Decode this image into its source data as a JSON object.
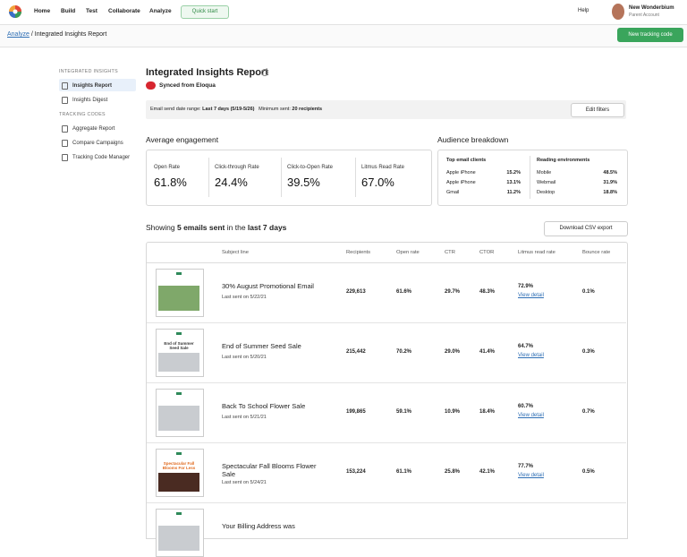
{
  "nav": {
    "items": [
      "Home",
      "Build",
      "Test",
      "Collaborate",
      "Analyze"
    ],
    "quick_start": "Quick start",
    "help": "Help",
    "account_name": "New Wonderbium",
    "account_type": "Parent Account"
  },
  "breadcrumb": {
    "parent": "Analyze",
    "separator": "/",
    "current": "Integrated Insights Report",
    "button": "New tracking code"
  },
  "sidebar": {
    "sections": [
      {
        "heading": "INTEGRATED INSIGHTS",
        "items": [
          "Insights Report",
          "Insights Digest"
        ]
      },
      {
        "heading": "TRACKING CODES",
        "items": [
          "Aggregate Report",
          "Compare Campaigns",
          "Tracking Code Manager"
        ]
      }
    ]
  },
  "report": {
    "title": "Integrated Insights Report",
    "sync": "Synced from Eloqua",
    "filters": {
      "range_label": "Email send date range:",
      "range_value": "Last 7 days (5/19-5/26)",
      "min_label": "Minimum sent:",
      "min_value": "20 recipients",
      "button": "Edit filters"
    },
    "engagement": {
      "heading": "Average engagement",
      "metrics": [
        {
          "label": "Open Rate",
          "value": "61.8%"
        },
        {
          "label": "Click-through Rate",
          "value": "24.4%"
        },
        {
          "label": "Click-to-Open Rate",
          "value": "39.5%"
        },
        {
          "label": "Litmus Read Rate",
          "value": "67.0%"
        }
      ]
    },
    "audience": {
      "heading": "Audience breakdown",
      "clients": {
        "heading": "Top email clients",
        "rows": [
          [
            "Apple iPhone",
            "15.2%"
          ],
          [
            "Apple iPhone",
            "13.1%"
          ],
          [
            "Gmail",
            "11.2%"
          ]
        ]
      },
      "environments": {
        "heading": "Reading environments",
        "rows": [
          [
            "Mobile",
            "48.5%"
          ],
          [
            "Webmail",
            "31.9%"
          ],
          [
            "Desktop",
            "18.8%"
          ]
        ]
      }
    },
    "showing": {
      "pre": "Showing",
      "count": "5 emails sent",
      "mid": "in the",
      "period": "last 7 days"
    },
    "download": "Download CSV export",
    "table": {
      "headers": [
        "Subject line",
        "Recipients",
        "Open rate",
        "CTR",
        "CTOR",
        "Litmus read rate",
        "Bounce rate"
      ],
      "detail_link": "View detail",
      "rows": [
        {
          "thumb": "",
          "subject": "30% August Promotional Email",
          "sent": "Last sent on 5/22/21",
          "recipients": "229,613",
          "open": "61.6%",
          "ctr": "29.7%",
          "ctor": "48.3%",
          "litmus": "72.9%",
          "bounce": "0.1%"
        },
        {
          "thumb": "End of Summer Seed Sale",
          "subject": "End of Summer Seed Sale",
          "sent": "Last sent on 5/20/21",
          "recipients": "215,442",
          "open": "70.2%",
          "ctr": "29.0%",
          "ctor": "41.4%",
          "litmus": "64.7%",
          "bounce": "0.3%"
        },
        {
          "thumb": "",
          "subject": "Back To School Flower Sale",
          "sent": "Last sent on 5/21/21",
          "recipients": "199,865",
          "open": "59.1%",
          "ctr": "10.9%",
          "ctor": "18.4%",
          "litmus": "60.7%",
          "bounce": "0.7%"
        },
        {
          "thumb": "Spectacular Fall Blooms For Less",
          "subject": "Spectacular Fall Blooms Flower Sale",
          "sent": "Last sent on 5/24/21",
          "recipients": "153,224",
          "open": "61.1%",
          "ctr": "25.8%",
          "ctor": "42.1%",
          "litmus": "77.7%",
          "bounce": "0.5%"
        },
        {
          "thumb": "",
          "subject": "Your Billing Address was",
          "sent": "",
          "recipients": "",
          "open": "",
          "ctr": "",
          "ctor": "",
          "litmus": "",
          "bounce": ""
        }
      ]
    }
  }
}
